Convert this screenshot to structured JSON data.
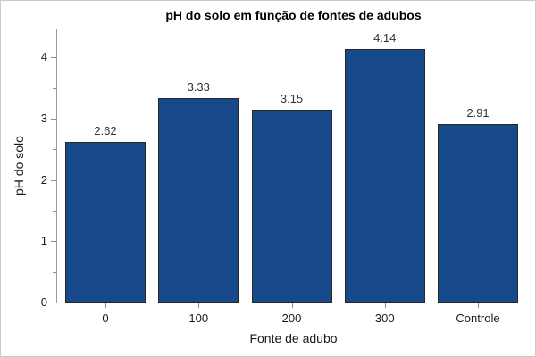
{
  "chart_data": {
    "type": "bar",
    "title": "pH do solo em função de fontes de adubos",
    "xlabel": "Fonte de adubo",
    "ylabel": "pH do solo",
    "categories": [
      "0",
      "100",
      "200",
      "300",
      "Controle"
    ],
    "values": [
      2.62,
      3.33,
      3.15,
      4.14,
      2.91
    ],
    "bar_labels": [
      "2.62",
      "3.33",
      "3.15",
      "4.14",
      "2.91"
    ],
    "ylim": [
      0,
      4.46
    ],
    "yticks_major": [
      0,
      1,
      2,
      3,
      4
    ],
    "yticks_minor": [
      0.5,
      1.5,
      2.5,
      3.5
    ],
    "grid": false,
    "legend": "none",
    "colors": {
      "bar_fill": "#17498B",
      "bar_border": "#262626",
      "axis_line": "#999999",
      "tick": "#8c8c8c",
      "text": "#1a1a1a",
      "value_label": "#333333",
      "background": "#ffffff",
      "figure_border": "#cbcbcb"
    }
  }
}
